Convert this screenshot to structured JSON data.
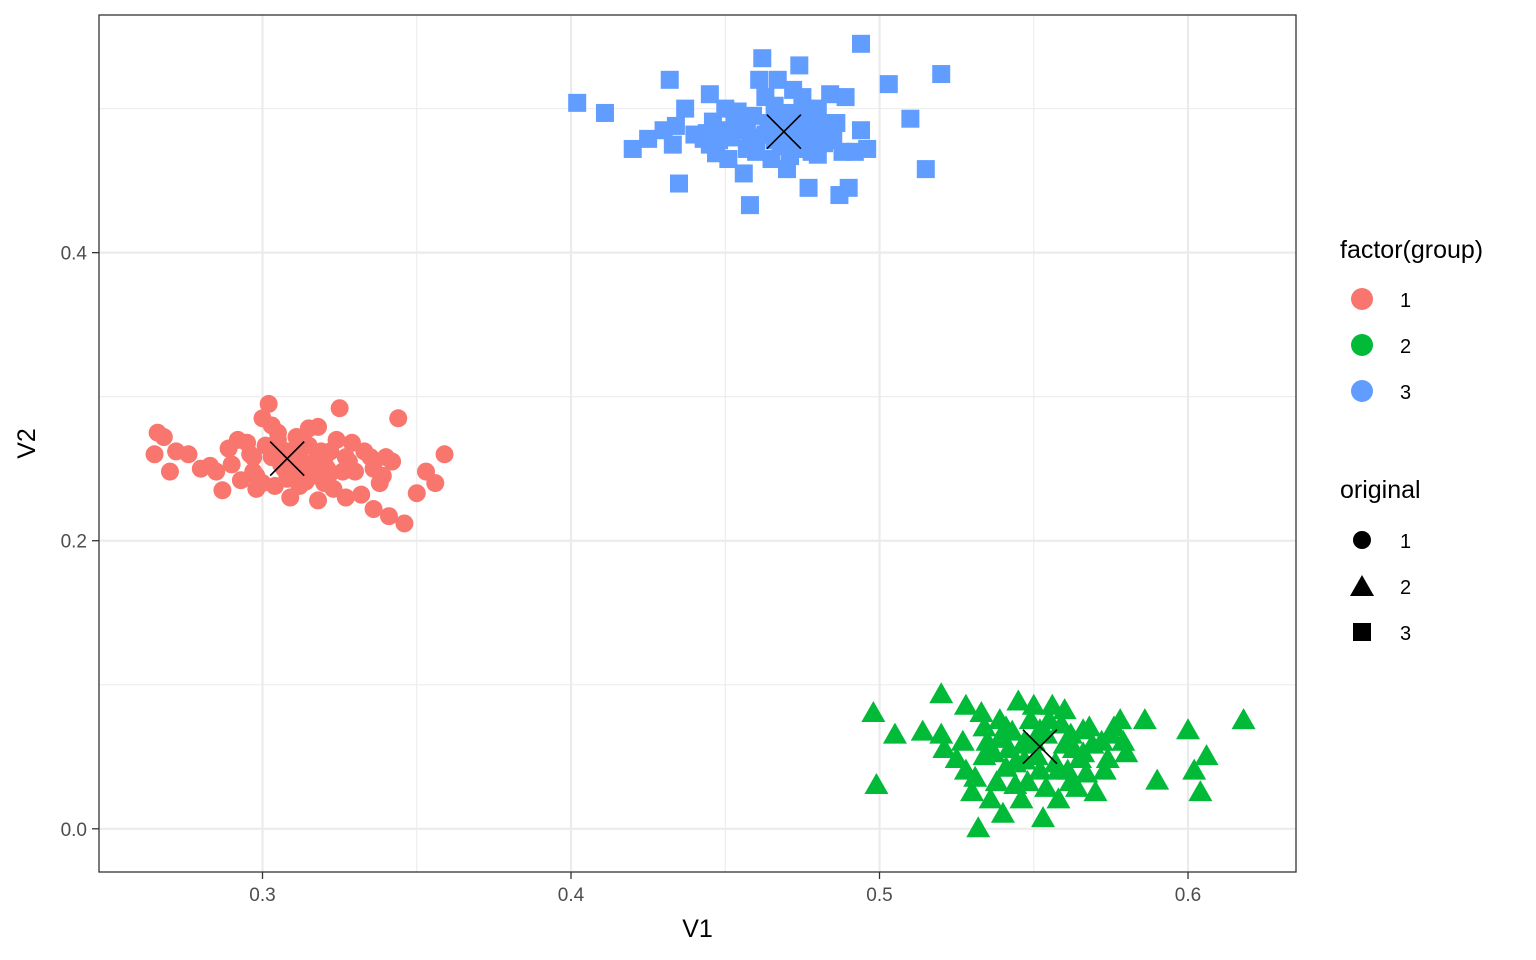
{
  "chart_data": {
    "type": "scatter",
    "title": "",
    "xlabel": "V1",
    "ylabel": "V2",
    "xlim": [
      0.247,
      0.635
    ],
    "ylim": [
      -0.03,
      0.565
    ],
    "x_ticks": [
      0.3,
      0.4,
      0.5,
      0.6
    ],
    "x_tick_labels": [
      "0.3",
      "0.4",
      "0.5",
      "0.6"
    ],
    "y_ticks": [
      0.0,
      0.2,
      0.4
    ],
    "y_tick_labels": [
      "0.0",
      "0.2",
      "0.4"
    ],
    "x_minor_ticks": [
      0.35,
      0.45,
      0.55
    ],
    "y_minor_ticks": [
      0.1,
      0.3,
      0.5
    ],
    "grid": true,
    "legend_position": "right",
    "legends": [
      {
        "title": "factor(group)",
        "kind": "color",
        "entries": [
          {
            "label": "1",
            "color": "#F8766D"
          },
          {
            "label": "2",
            "color": "#00BA38"
          },
          {
            "label": "3",
            "color": "#619CFF"
          }
        ]
      },
      {
        "title": "original",
        "kind": "shape",
        "entries": [
          {
            "label": "1",
            "shape": "circle"
          },
          {
            "label": "2",
            "shape": "triangle"
          },
          {
            "label": "3",
            "shape": "square"
          }
        ]
      }
    ],
    "series": [
      {
        "group": "1",
        "original": "1",
        "color": "#F8766D",
        "shape": "circle",
        "center": [
          0.3,
          0.255
        ],
        "spread": [
          0.022,
          0.018
        ],
        "count": 80,
        "points": [
          [
            0.266,
            0.275
          ],
          [
            0.268,
            0.272
          ],
          [
            0.272,
            0.262
          ],
          [
            0.265,
            0.26
          ],
          [
            0.27,
            0.248
          ],
          [
            0.28,
            0.25
          ],
          [
            0.285,
            0.248
          ],
          [
            0.287,
            0.235
          ],
          [
            0.29,
            0.253
          ],
          [
            0.292,
            0.27
          ],
          [
            0.295,
            0.268
          ],
          [
            0.297,
            0.258
          ],
          [
            0.298,
            0.245
          ],
          [
            0.3,
            0.285
          ],
          [
            0.302,
            0.295
          ],
          [
            0.303,
            0.28
          ],
          [
            0.305,
            0.275
          ],
          [
            0.306,
            0.263
          ],
          [
            0.307,
            0.25
          ],
          [
            0.3,
            0.24
          ],
          [
            0.309,
            0.23
          ],
          [
            0.31,
            0.245
          ],
          [
            0.312,
            0.258
          ],
          [
            0.313,
            0.268
          ],
          [
            0.315,
            0.278
          ],
          [
            0.316,
            0.245
          ],
          [
            0.317,
            0.255
          ],
          [
            0.318,
            0.228
          ],
          [
            0.32,
            0.24
          ],
          [
            0.321,
            0.25
          ],
          [
            0.322,
            0.262
          ],
          [
            0.324,
            0.27
          ],
          [
            0.325,
            0.292
          ],
          [
            0.326,
            0.248
          ],
          [
            0.327,
            0.23
          ],
          [
            0.328,
            0.255
          ],
          [
            0.33,
            0.248
          ],
          [
            0.335,
            0.258
          ],
          [
            0.336,
            0.25
          ],
          [
            0.338,
            0.24
          ],
          [
            0.34,
            0.258
          ],
          [
            0.342,
            0.255
          ],
          [
            0.344,
            0.285
          ],
          [
            0.336,
            0.222
          ],
          [
            0.341,
            0.217
          ],
          [
            0.346,
            0.212
          ],
          [
            0.35,
            0.233
          ],
          [
            0.353,
            0.248
          ],
          [
            0.356,
            0.24
          ],
          [
            0.359,
            0.26
          ],
          [
            0.304,
            0.238
          ],
          [
            0.308,
            0.243
          ],
          [
            0.314,
            0.252
          ],
          [
            0.319,
            0.262
          ],
          [
            0.323,
            0.236
          ],
          [
            0.311,
            0.272
          ],
          [
            0.296,
            0.26
          ],
          [
            0.293,
            0.242
          ],
          [
            0.301,
            0.266
          ],
          [
            0.318,
            0.279
          ],
          [
            0.329,
            0.268
          ],
          [
            0.332,
            0.232
          ],
          [
            0.289,
            0.264
          ],
          [
            0.276,
            0.26
          ],
          [
            0.283,
            0.252
          ],
          [
            0.306,
            0.253
          ],
          [
            0.315,
            0.266
          ],
          [
            0.322,
            0.247
          ],
          [
            0.309,
            0.255
          ],
          [
            0.298,
            0.236
          ],
          [
            0.333,
            0.262
          ],
          [
            0.339,
            0.245
          ],
          [
            0.327,
            0.258
          ],
          [
            0.312,
            0.238
          ],
          [
            0.305,
            0.27
          ],
          [
            0.297,
            0.248
          ],
          [
            0.32,
            0.255
          ],
          [
            0.314,
            0.241
          ],
          [
            0.303,
            0.258
          ],
          [
            0.308,
            0.262
          ]
        ],
        "center_marker": [
          0.308,
          0.257
        ]
      },
      {
        "group": "2",
        "original": "2",
        "color": "#00BA38",
        "shape": "triangle",
        "center": [
          0.55,
          0.05
        ],
        "spread": [
          0.028,
          0.02
        ],
        "count": 80,
        "points": [
          [
            0.499,
            0.03
          ],
          [
            0.498,
            0.08
          ],
          [
            0.505,
            0.065
          ],
          [
            0.514,
            0.067
          ],
          [
            0.52,
            0.093
          ],
          [
            0.52,
            0.065
          ],
          [
            0.521,
            0.055
          ],
          [
            0.525,
            0.048
          ],
          [
            0.528,
            0.085
          ],
          [
            0.528,
            0.04
          ],
          [
            0.53,
            0.025
          ],
          [
            0.532,
            0.0
          ],
          [
            0.533,
            0.08
          ],
          [
            0.534,
            0.05
          ],
          [
            0.535,
            0.06
          ],
          [
            0.536,
            0.02
          ],
          [
            0.538,
            0.032
          ],
          [
            0.539,
            0.075
          ],
          [
            0.54,
            0.01
          ],
          [
            0.541,
            0.07
          ],
          [
            0.542,
            0.055
          ],
          [
            0.544,
            0.045
          ],
          [
            0.545,
            0.088
          ],
          [
            0.546,
            0.02
          ],
          [
            0.547,
            0.06
          ],
          [
            0.548,
            0.032
          ],
          [
            0.549,
            0.075
          ],
          [
            0.55,
            0.085
          ],
          [
            0.551,
            0.05
          ],
          [
            0.552,
            0.04
          ],
          [
            0.553,
            0.007
          ],
          [
            0.554,
            0.065
          ],
          [
            0.556,
            0.085
          ],
          [
            0.557,
            0.045
          ],
          [
            0.558,
            0.02
          ],
          [
            0.559,
            0.072
          ],
          [
            0.56,
            0.058
          ],
          [
            0.561,
            0.04
          ],
          [
            0.562,
            0.032
          ],
          [
            0.563,
            0.055
          ],
          [
            0.565,
            0.048
          ],
          [
            0.566,
            0.068
          ],
          [
            0.567,
            0.038
          ],
          [
            0.568,
            0.07
          ],
          [
            0.57,
            0.025
          ],
          [
            0.572,
            0.06
          ],
          [
            0.574,
            0.048
          ],
          [
            0.576,
            0.07
          ],
          [
            0.578,
            0.075
          ],
          [
            0.58,
            0.052
          ],
          [
            0.586,
            0.075
          ],
          [
            0.59,
            0.033
          ],
          [
            0.6,
            0.068
          ],
          [
            0.602,
            0.04
          ],
          [
            0.604,
            0.025
          ],
          [
            0.606,
            0.05
          ],
          [
            0.618,
            0.075
          ],
          [
            0.537,
            0.052
          ],
          [
            0.543,
            0.067
          ],
          [
            0.548,
            0.058
          ],
          [
            0.555,
            0.075
          ],
          [
            0.562,
            0.065
          ],
          [
            0.569,
            0.058
          ],
          [
            0.575,
            0.065
          ],
          [
            0.527,
            0.06
          ],
          [
            0.531,
            0.035
          ],
          [
            0.544,
            0.03
          ],
          [
            0.558,
            0.04
          ],
          [
            0.564,
            0.028
          ],
          [
            0.552,
            0.068
          ],
          [
            0.541,
            0.042
          ],
          [
            0.547,
            0.047
          ],
          [
            0.573,
            0.04
          ],
          [
            0.579,
            0.06
          ],
          [
            0.534,
            0.07
          ],
          [
            0.56,
            0.082
          ],
          [
            0.566,
            0.052
          ],
          [
            0.55,
            0.06
          ],
          [
            0.554,
            0.028
          ],
          [
            0.539,
            0.062
          ]
        ],
        "center_marker": [
          0.552,
          0.057
        ]
      },
      {
        "group": "3",
        "original": "3",
        "color": "#619CFF",
        "shape": "square",
        "center": [
          0.47,
          0.48
        ],
        "spread": [
          0.02,
          0.02
        ],
        "count": 80,
        "points": [
          [
            0.402,
            0.504
          ],
          [
            0.411,
            0.497
          ],
          [
            0.42,
            0.472
          ],
          [
            0.425,
            0.479
          ],
          [
            0.43,
            0.485
          ],
          [
            0.432,
            0.52
          ],
          [
            0.433,
            0.475
          ],
          [
            0.434,
            0.488
          ],
          [
            0.435,
            0.448
          ],
          [
            0.437,
            0.5
          ],
          [
            0.44,
            0.482
          ],
          [
            0.443,
            0.479
          ],
          [
            0.445,
            0.51
          ],
          [
            0.446,
            0.491
          ],
          [
            0.447,
            0.469
          ],
          [
            0.448,
            0.478
          ],
          [
            0.45,
            0.5
          ],
          [
            0.451,
            0.465
          ],
          [
            0.452,
            0.48
          ],
          [
            0.453,
            0.492
          ],
          [
            0.455,
            0.485
          ],
          [
            0.456,
            0.455
          ],
          [
            0.457,
            0.472
          ],
          [
            0.458,
            0.433
          ],
          [
            0.459,
            0.495
          ],
          [
            0.46,
            0.48
          ],
          [
            0.461,
            0.52
          ],
          [
            0.462,
            0.535
          ],
          [
            0.463,
            0.508
          ],
          [
            0.464,
            0.49
          ],
          [
            0.465,
            0.465
          ],
          [
            0.466,
            0.502
          ],
          [
            0.467,
            0.52
          ],
          [
            0.468,
            0.474
          ],
          [
            0.469,
            0.48
          ],
          [
            0.47,
            0.458
          ],
          [
            0.471,
            0.497
          ],
          [
            0.472,
            0.513
          ],
          [
            0.473,
            0.485
          ],
          [
            0.474,
            0.53
          ],
          [
            0.475,
            0.508
          ],
          [
            0.476,
            0.488
          ],
          [
            0.477,
            0.445
          ],
          [
            0.478,
            0.47
          ],
          [
            0.479,
            0.48
          ],
          [
            0.48,
            0.5
          ],
          [
            0.481,
            0.49
          ],
          [
            0.482,
            0.476
          ],
          [
            0.484,
            0.51
          ],
          [
            0.486,
            0.49
          ],
          [
            0.487,
            0.44
          ],
          [
            0.489,
            0.508
          ],
          [
            0.49,
            0.445
          ],
          [
            0.492,
            0.47
          ],
          [
            0.494,
            0.485
          ],
          [
            0.494,
            0.545
          ],
          [
            0.496,
            0.472
          ],
          [
            0.503,
            0.517
          ],
          [
            0.51,
            0.493
          ],
          [
            0.515,
            0.458
          ],
          [
            0.52,
            0.524
          ],
          [
            0.445,
            0.475
          ],
          [
            0.454,
            0.498
          ],
          [
            0.46,
            0.47
          ],
          [
            0.463,
            0.482
          ],
          [
            0.468,
            0.492
          ],
          [
            0.471,
            0.467
          ],
          [
            0.475,
            0.479
          ],
          [
            0.478,
            0.495
          ],
          [
            0.482,
            0.485
          ],
          [
            0.485,
            0.478
          ],
          [
            0.488,
            0.47
          ],
          [
            0.449,
            0.485
          ],
          [
            0.457,
            0.49
          ],
          [
            0.466,
            0.478
          ],
          [
            0.473,
            0.472
          ],
          [
            0.48,
            0.468
          ],
          [
            0.458,
            0.478
          ],
          [
            0.444,
            0.483
          ],
          [
            0.476,
            0.5
          ]
        ],
        "center_marker": [
          0.469,
          0.484
        ]
      }
    ]
  }
}
